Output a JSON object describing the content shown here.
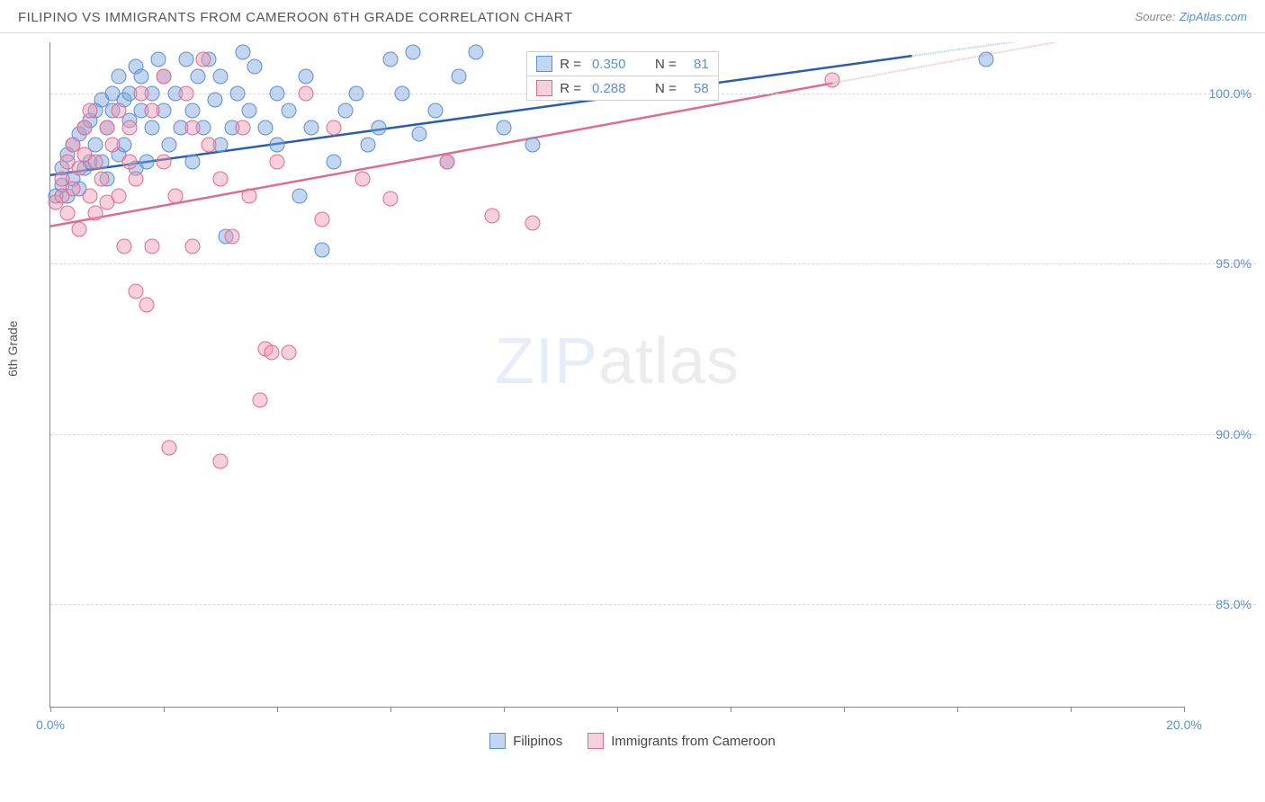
{
  "title": "FILIPINO VS IMMIGRANTS FROM CAMEROON 6TH GRADE CORRELATION CHART",
  "source": {
    "label": "Source:",
    "link_text": "ZipAtlas.com"
  },
  "chart": {
    "type": "scatter",
    "y_axis_label": "6th Grade",
    "xlim": [
      0,
      20
    ],
    "ylim": [
      82,
      101.5
    ],
    "x_ticks": [
      0,
      2,
      4,
      6,
      8,
      10,
      12,
      14,
      16,
      18,
      20
    ],
    "x_tick_labels": {
      "0": "0.0%",
      "20": "20.0%"
    },
    "y_ticks": [
      85,
      90,
      95,
      100
    ],
    "y_tick_labels": {
      "85": "85.0%",
      "90": "90.0%",
      "95": "95.0%",
      "100": "100.0%"
    },
    "background_color": "#ffffff",
    "grid_color": "#d8d8d8",
    "axis_color": "#888888",
    "marker_radius": 8.5,
    "series": [
      {
        "name": "Filipinos",
        "fill_color": "rgba(120,165,220,0.45)",
        "stroke_color": "#5b8fd6",
        "line_color": "#2a5db0",
        "dash_color": "#bcd1ee",
        "r_value": "0.350",
        "n_value": "81",
        "trend": {
          "x1": 0,
          "y1": 97.6,
          "x2_solid": 15.2,
          "y2_solid": 101.1,
          "x2_dash": 20,
          "y2_dash": 102.2
        },
        "points": [
          [
            0.1,
            97.0
          ],
          [
            0.2,
            97.3
          ],
          [
            0.2,
            97.8
          ],
          [
            0.3,
            97.0
          ],
          [
            0.3,
            98.2
          ],
          [
            0.4,
            97.5
          ],
          [
            0.4,
            98.5
          ],
          [
            0.5,
            98.8
          ],
          [
            0.5,
            97.2
          ],
          [
            0.6,
            99.0
          ],
          [
            0.6,
            97.8
          ],
          [
            0.7,
            98.0
          ],
          [
            0.7,
            99.2
          ],
          [
            0.8,
            98.5
          ],
          [
            0.8,
            99.5
          ],
          [
            0.9,
            98.0
          ],
          [
            0.9,
            99.8
          ],
          [
            1.0,
            99.0
          ],
          [
            1.0,
            97.5
          ],
          [
            1.1,
            99.5
          ],
          [
            1.1,
            100.0
          ],
          [
            1.2,
            98.2
          ],
          [
            1.2,
            100.5
          ],
          [
            1.3,
            99.8
          ],
          [
            1.3,
            98.5
          ],
          [
            1.4,
            100.0
          ],
          [
            1.4,
            99.2
          ],
          [
            1.5,
            100.8
          ],
          [
            1.5,
            97.8
          ],
          [
            1.6,
            99.5
          ],
          [
            1.6,
            100.5
          ],
          [
            1.7,
            98.0
          ],
          [
            1.8,
            100.0
          ],
          [
            1.8,
            99.0
          ],
          [
            1.9,
            101.0
          ],
          [
            2.0,
            99.5
          ],
          [
            2.0,
            100.5
          ],
          [
            2.1,
            98.5
          ],
          [
            2.2,
            100.0
          ],
          [
            2.3,
            99.0
          ],
          [
            2.4,
            101.0
          ],
          [
            2.5,
            99.5
          ],
          [
            2.5,
            98.0
          ],
          [
            2.6,
            100.5
          ],
          [
            2.7,
            99.0
          ],
          [
            2.8,
            101.0
          ],
          [
            2.9,
            99.8
          ],
          [
            3.0,
            100.5
          ],
          [
            3.0,
            98.5
          ],
          [
            3.1,
            95.8
          ],
          [
            3.2,
            99.0
          ],
          [
            3.3,
            100.0
          ],
          [
            3.4,
            101.2
          ],
          [
            3.5,
            99.5
          ],
          [
            3.6,
            100.8
          ],
          [
            3.8,
            99.0
          ],
          [
            4.0,
            100.0
          ],
          [
            4.0,
            98.5
          ],
          [
            4.2,
            99.5
          ],
          [
            4.4,
            97.0
          ],
          [
            4.5,
            100.5
          ],
          [
            4.6,
            99.0
          ],
          [
            4.8,
            95.4
          ],
          [
            5.0,
            98.0
          ],
          [
            5.2,
            99.5
          ],
          [
            5.4,
            100.0
          ],
          [
            5.6,
            98.5
          ],
          [
            5.8,
            99.0
          ],
          [
            6.0,
            101.0
          ],
          [
            6.2,
            100.0
          ],
          [
            6.4,
            101.2
          ],
          [
            6.5,
            98.8
          ],
          [
            6.8,
            99.5
          ],
          [
            7.0,
            98.0
          ],
          [
            7.2,
            100.5
          ],
          [
            7.5,
            101.2
          ],
          [
            8.0,
            99.0
          ],
          [
            8.5,
            98.5
          ],
          [
            9.0,
            100.0
          ],
          [
            11.5,
            100.8
          ],
          [
            16.5,
            101.0
          ]
        ]
      },
      {
        "name": "Immigrants from Cameroon",
        "fill_color": "rgba(240,150,175,0.45)",
        "stroke_color": "#e26a8d",
        "line_color": "#e26a8d",
        "dash_color": "#f2c3d0",
        "r_value": "0.288",
        "n_value": "58",
        "trend": {
          "x1": 0,
          "y1": 96.1,
          "x2_solid": 13.8,
          "y2_solid": 100.3,
          "x2_dash": 20,
          "y2_dash": 102.2
        },
        "points": [
          [
            0.1,
            96.8
          ],
          [
            0.2,
            97.0
          ],
          [
            0.2,
            97.5
          ],
          [
            0.3,
            96.5
          ],
          [
            0.3,
            98.0
          ],
          [
            0.4,
            97.2
          ],
          [
            0.4,
            98.5
          ],
          [
            0.5,
            96.0
          ],
          [
            0.5,
            97.8
          ],
          [
            0.6,
            98.2
          ],
          [
            0.6,
            99.0
          ],
          [
            0.7,
            97.0
          ],
          [
            0.7,
            99.5
          ],
          [
            0.8,
            96.5
          ],
          [
            0.8,
            98.0
          ],
          [
            0.9,
            97.5
          ],
          [
            1.0,
            99.0
          ],
          [
            1.0,
            96.8
          ],
          [
            1.1,
            98.5
          ],
          [
            1.2,
            97.0
          ],
          [
            1.2,
            99.5
          ],
          [
            1.3,
            95.5
          ],
          [
            1.4,
            98.0
          ],
          [
            1.4,
            99.0
          ],
          [
            1.5,
            97.5
          ],
          [
            1.5,
            94.2
          ],
          [
            1.6,
            100.0
          ],
          [
            1.7,
            93.8
          ],
          [
            1.8,
            95.5
          ],
          [
            1.8,
            99.5
          ],
          [
            2.0,
            98.0
          ],
          [
            2.0,
            100.5
          ],
          [
            2.1,
            89.6
          ],
          [
            2.2,
            97.0
          ],
          [
            2.4,
            100.0
          ],
          [
            2.5,
            95.5
          ],
          [
            2.5,
            99.0
          ],
          [
            2.7,
            101.0
          ],
          [
            2.8,
            98.5
          ],
          [
            3.0,
            97.5
          ],
          [
            3.0,
            89.2
          ],
          [
            3.2,
            95.8
          ],
          [
            3.4,
            99.0
          ],
          [
            3.5,
            97.0
          ],
          [
            3.7,
            91.0
          ],
          [
            3.8,
            92.5
          ],
          [
            3.9,
            92.4
          ],
          [
            4.0,
            98.0
          ],
          [
            4.2,
            92.4
          ],
          [
            4.5,
            100.0
          ],
          [
            4.8,
            96.3
          ],
          [
            5.0,
            99.0
          ],
          [
            5.5,
            97.5
          ],
          [
            6.0,
            96.9
          ],
          [
            7.0,
            98.0
          ],
          [
            7.8,
            96.4
          ],
          [
            8.5,
            96.2
          ],
          [
            13.8,
            100.4
          ]
        ]
      }
    ]
  },
  "watermark": {
    "part1": "ZIP",
    "part2": "atlas"
  }
}
